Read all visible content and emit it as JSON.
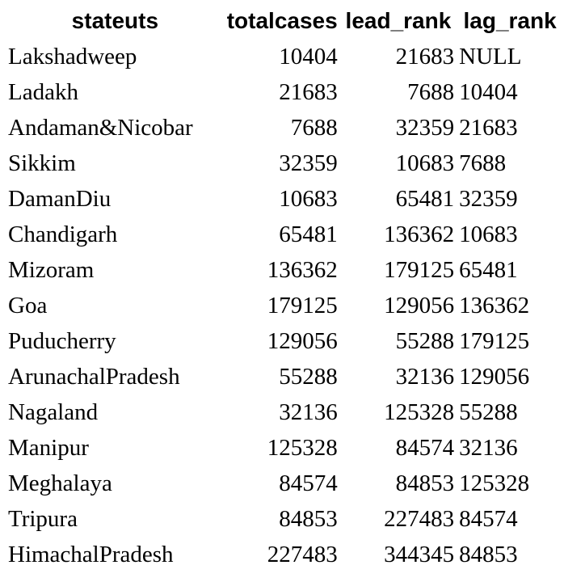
{
  "table": {
    "headers": [
      "stateuts",
      "totalcases",
      "lead_rank",
      "lag_rank"
    ],
    "rows": [
      [
        "Lakshadweep",
        "10404",
        "21683",
        "NULL"
      ],
      [
        "Ladakh",
        "21683",
        "7688",
        "10404"
      ],
      [
        "Andaman&Nicobar",
        "7688",
        "32359",
        "21683"
      ],
      [
        "Sikkim",
        "32359",
        "10683",
        "7688"
      ],
      [
        "DamanDiu",
        "10683",
        "65481",
        "32359"
      ],
      [
        "Chandigarh",
        "65481",
        "136362",
        "10683"
      ],
      [
        "Mizoram",
        "136362",
        "179125",
        "65481"
      ],
      [
        "Goa",
        "179125",
        "129056",
        "136362"
      ],
      [
        "Puducherry",
        "129056",
        "55288",
        "179125"
      ],
      [
        "ArunachalPradesh",
        "55288",
        "32136",
        "129056"
      ],
      [
        "Nagaland",
        "32136",
        "125328",
        "55288"
      ],
      [
        "Manipur",
        "125328",
        "84574",
        "32136"
      ],
      [
        "Meghalaya",
        "84574",
        "84853",
        "125328"
      ],
      [
        "Tripura",
        "84853",
        "227483",
        "84574"
      ],
      [
        "HimachalPradesh",
        "227483",
        "344345",
        "84853"
      ]
    ]
  }
}
